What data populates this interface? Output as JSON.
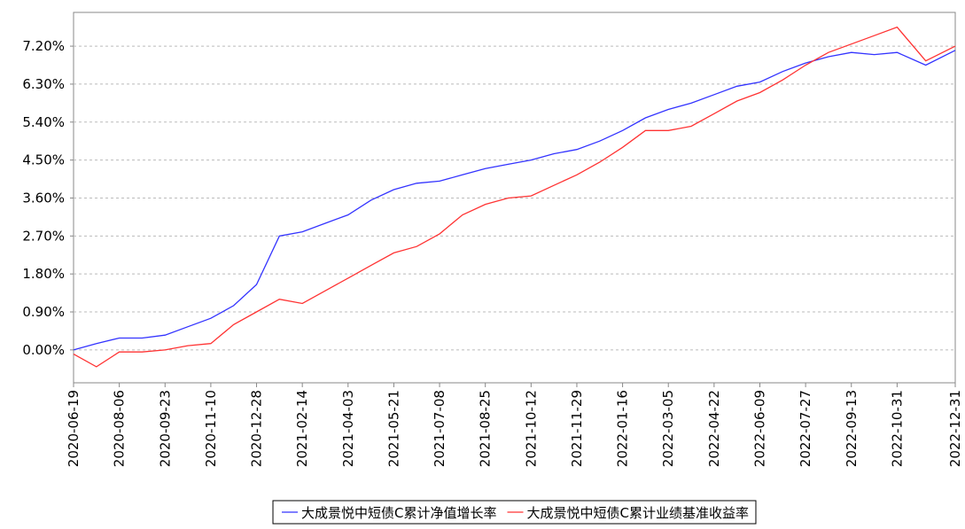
{
  "chart_data": {
    "type": "line",
    "x": [
      "2020-06-19",
      "2020-07-13",
      "2020-08-06",
      "2020-08-30",
      "2020-09-23",
      "2020-10-17",
      "2020-11-10",
      "2020-12-04",
      "2020-12-28",
      "2021-01-21",
      "2021-02-14",
      "2021-03-10",
      "2021-04-03",
      "2021-04-27",
      "2021-05-21",
      "2021-06-14",
      "2021-07-08",
      "2021-08-01",
      "2021-08-25",
      "2021-09-18",
      "2021-10-12",
      "2021-11-05",
      "2021-11-29",
      "2021-12-23",
      "2022-01-16",
      "2022-02-09",
      "2022-03-05",
      "2022-03-29",
      "2022-04-22",
      "2022-05-16",
      "2022-06-09",
      "2022-07-03",
      "2022-07-27",
      "2022-08-20",
      "2022-09-13",
      "2022-10-07",
      "2022-10-31",
      "2022-11-30",
      "2022-12-31"
    ],
    "series": [
      {
        "name": "大成景悦中短债C累计净值增长率",
        "color": "#3333ff",
        "values": [
          0.0,
          0.15,
          0.28,
          0.28,
          0.35,
          0.55,
          0.75,
          1.05,
          1.55,
          2.7,
          2.8,
          3.0,
          3.2,
          3.55,
          3.8,
          3.95,
          4.0,
          4.15,
          4.3,
          4.4,
          4.5,
          4.65,
          4.75,
          4.95,
          5.2,
          5.5,
          5.7,
          5.85,
          6.05,
          6.25,
          6.35,
          6.6,
          6.8,
          6.95,
          7.05,
          7.0,
          7.05,
          6.75,
          7.1
        ]
      },
      {
        "name": "大成景悦中短债C累计业绩基准收益率",
        "color": "#ff3333",
        "values": [
          -0.1,
          -0.4,
          -0.05,
          -0.05,
          0.0,
          0.1,
          0.15,
          0.6,
          0.9,
          1.2,
          1.1,
          1.4,
          1.7,
          2.0,
          2.3,
          2.45,
          2.75,
          3.2,
          3.45,
          3.6,
          3.65,
          3.9,
          4.15,
          4.45,
          4.8,
          5.2,
          5.2,
          5.3,
          5.6,
          5.9,
          6.1,
          6.4,
          6.75,
          7.05,
          7.25,
          7.45,
          7.65,
          6.85,
          7.2
        ]
      }
    ],
    "xlim": [
      "2020-06-19",
      "2022-12-31"
    ],
    "xticks": [
      "2020-06-19",
      "2020-08-06",
      "2020-09-23",
      "2020-11-10",
      "2020-12-28",
      "2021-02-14",
      "2021-04-03",
      "2021-05-21",
      "2021-07-08",
      "2021-08-25",
      "2021-10-12",
      "2021-11-29",
      "2022-01-16",
      "2022-03-05",
      "2022-04-22",
      "2022-06-09",
      "2022-07-27",
      "2022-09-13",
      "2022-10-31",
      "2022-12-31"
    ],
    "ylim": [
      -0.78,
      8.0
    ],
    "yticks": [
      {
        "value": 0,
        "label": "0.00%"
      },
      {
        "value": 0.9,
        "label": "0.90%"
      },
      {
        "value": 1.8,
        "label": "1.80%"
      },
      {
        "value": 2.7,
        "label": "2.70%"
      },
      {
        "value": 3.6,
        "label": "3.60%"
      },
      {
        "value": 4.5,
        "label": "4.50%"
      },
      {
        "value": 5.4,
        "label": "5.40%"
      },
      {
        "value": 6.3,
        "label": "6.30%"
      },
      {
        "value": 7.2,
        "label": "7.20%"
      }
    ],
    "grid": true,
    "legend": "bottom"
  }
}
